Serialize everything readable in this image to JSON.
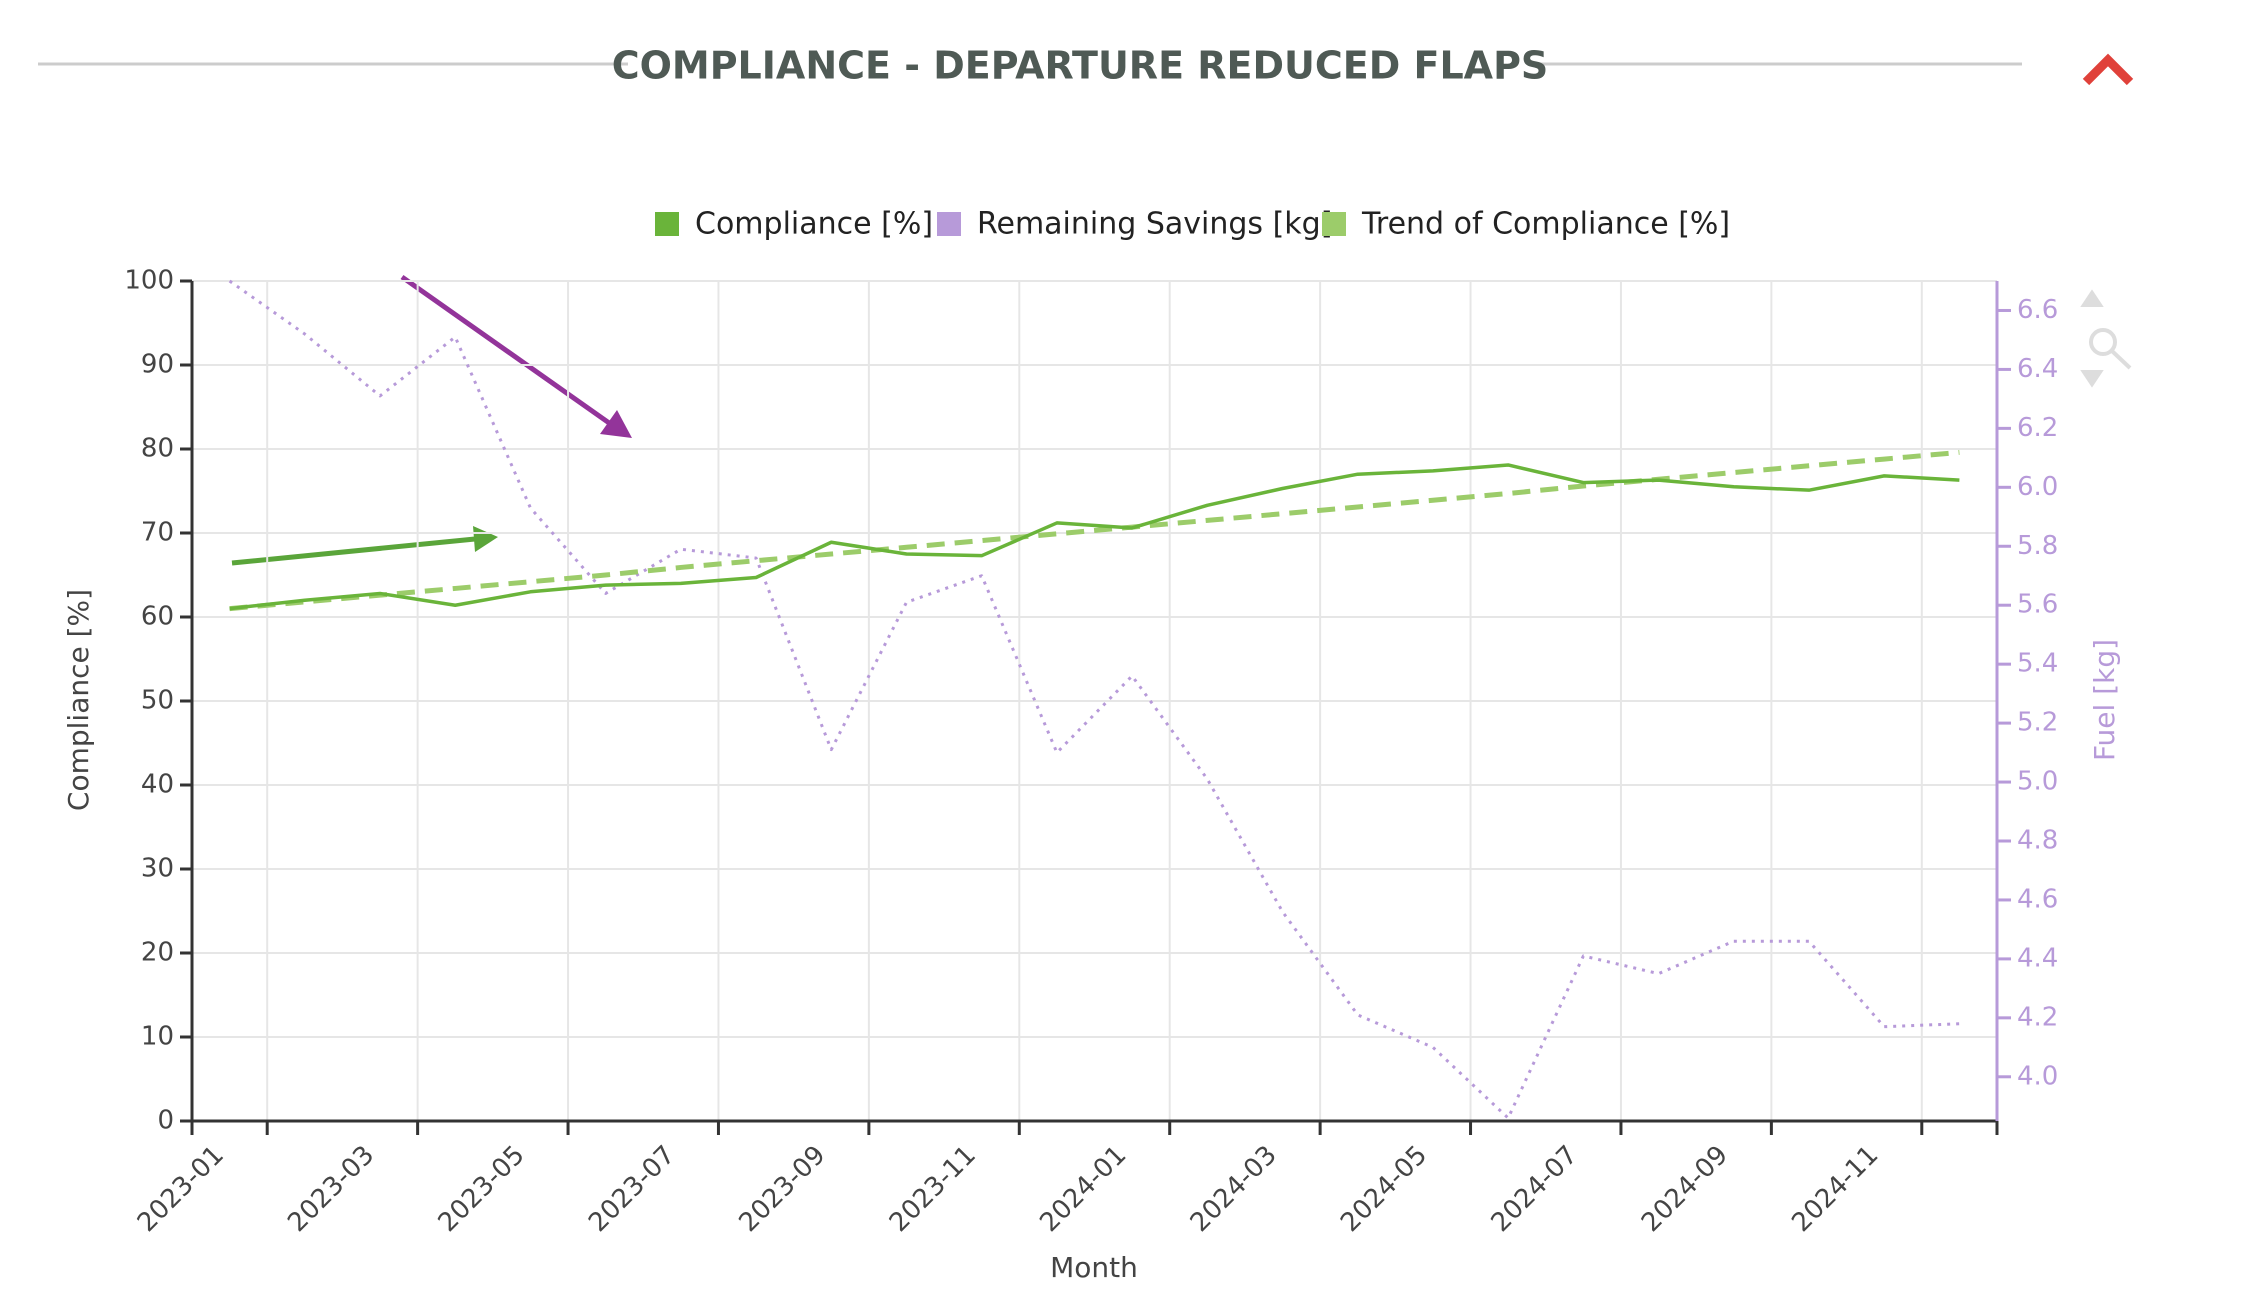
{
  "chart_data": {
    "type": "line",
    "title": "COMPLIANCE - DEPARTURE REDUCED FLAPS",
    "xlabel": "Month",
    "ylabel": "Compliance [%]",
    "y2label": "Fuel [kg]",
    "categories": [
      "2023-01",
      null,
      "2023-03",
      null,
      "2023-05",
      null,
      "2023-07",
      null,
      "2023-09",
      null,
      "2023-11",
      null,
      "2024-01",
      null,
      "2024-03",
      null,
      "2024-05",
      null,
      "2024-07",
      null,
      "2024-09",
      null,
      "2024-11",
      null
    ],
    "series": [
      {
        "name": "Compliance [%]",
        "color": "#6ab43a",
        "style": "solid",
        "values": [
          61,
          62,
          62.8,
          61.4,
          63,
          63.8,
          64,
          64.7,
          68.9,
          67.5,
          67.3,
          71.2,
          70.6,
          73.3,
          75.3,
          77,
          77.4,
          78.1,
          76,
          76.3,
          75.5,
          75.1,
          76.8,
          76.3
        ]
      },
      {
        "name": "Remaining Savings [kg]",
        "color": "#b79ad9",
        "style": "dotted",
        "axis": "y2",
        "values": [
          6.7,
          6.52,
          6.31,
          6.51,
          5.93,
          5.64,
          5.79,
          5.76,
          5.11,
          5.61,
          5.7,
          5.1,
          5.36,
          5.01,
          4.56,
          4.21,
          4.1,
          3.86,
          4.41,
          4.35,
          4.46,
          4.46,
          4.17,
          4.18
        ]
      },
      {
        "name": "Trend of Compliance [%]",
        "color": "#9ccc6a",
        "style": "dashed",
        "values": [
          61.0,
          61.8,
          62.6,
          63.4,
          64.2,
          65.0,
          65.9,
          66.7,
          67.5,
          68.3,
          69.1,
          69.9,
          70.7,
          71.5,
          72.3,
          73.1,
          73.9,
          74.7,
          75.6,
          76.4,
          77.2,
          78.0,
          78.8,
          79.6
        ]
      }
    ],
    "ylim": [
      0,
      100
    ],
    "yticks": [
      0,
      10,
      20,
      30,
      40,
      50,
      60,
      70,
      80,
      90,
      100
    ],
    "y2lim": [
      3.85,
      6.7
    ],
    "y2ticks": [
      {
        "value": 4,
        "label": "4.0"
      },
      4.2,
      4.4,
      4.6,
      4.8,
      {
        "value": 5,
        "label": "5.0"
      },
      5.2,
      5.4,
      5.6,
      5.8,
      {
        "value": 6,
        "label": "6.0"
      },
      6.2,
      6.4,
      6.6
    ],
    "grid": true,
    "legend": "top"
  }
}
